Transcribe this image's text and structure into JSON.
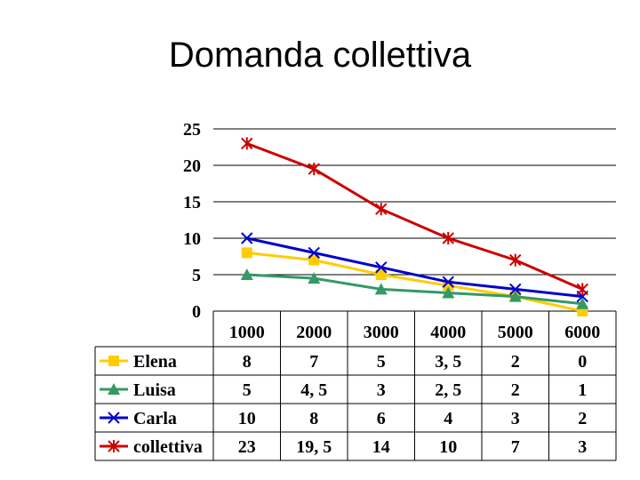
{
  "title": "Domanda collettiva",
  "chart_data": {
    "type": "line",
    "title": "Domanda collettiva",
    "categories": [
      "1000",
      "2000",
      "3000",
      "4000",
      "5000",
      "6000"
    ],
    "ylim": [
      0,
      25
    ],
    "yticks": [
      "0",
      "5",
      "10",
      "15",
      "20",
      "25"
    ],
    "grid": true,
    "legend_position": "data-table-left",
    "series": [
      {
        "name": "Elena",
        "color": "#FFCC00",
        "marker": "square",
        "values": [
          8,
          7,
          5,
          3.5,
          2,
          0
        ],
        "labels": [
          "8",
          "7",
          "5",
          "3, 5",
          "2",
          "0"
        ]
      },
      {
        "name": "Luisa",
        "color": "#339966",
        "marker": "triangle",
        "values": [
          5,
          4.5,
          3,
          2.5,
          2,
          1
        ],
        "labels": [
          "5",
          "4, 5",
          "3",
          "2, 5",
          "2",
          "1"
        ]
      },
      {
        "name": "Carla",
        "color": "#0000CC",
        "marker": "x",
        "values": [
          10,
          8,
          6,
          4,
          3,
          2
        ],
        "labels": [
          "10",
          "8",
          "6",
          "4",
          "3",
          "2"
        ]
      },
      {
        "name": "collettiva",
        "color": "#CC0000",
        "marker": "star",
        "values": [
          23,
          19.5,
          14,
          10,
          7,
          3
        ],
        "labels": [
          "23",
          "19, 5",
          "14",
          "10",
          "7",
          "3"
        ]
      }
    ]
  }
}
